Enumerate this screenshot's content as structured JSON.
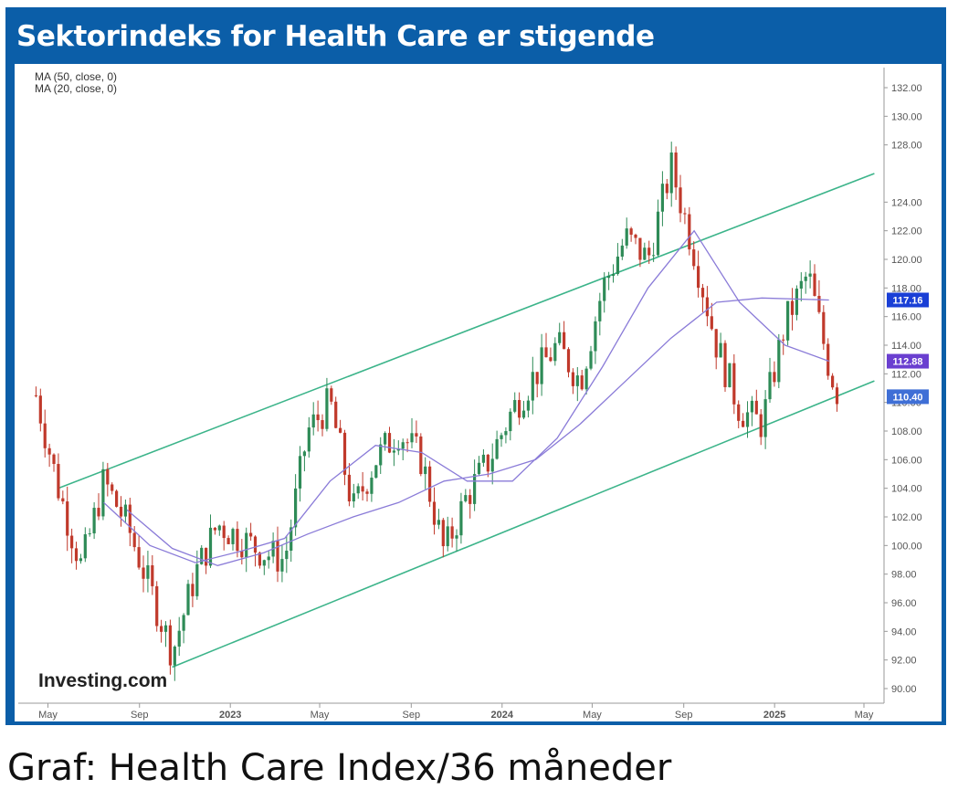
{
  "title": "Sektorindeks for Health Care er stigende",
  "caption": "Graf: Health Care Index/36 måneder",
  "watermark": "Investing.com",
  "colors": {
    "frame": "#0b5ea8",
    "up": "#2e8b57",
    "down": "#c0392b",
    "ma50": "#8a7bd8",
    "channel": "#3cb48a",
    "badge_blue": "#1a3fd6",
    "badge_purple": "#6a3fd0",
    "badge_light": "#3f6fd6"
  },
  "chart_data": {
    "type": "candlestick",
    "legend": [
      "MA (50, close, 0)",
      "MA (20, close, 0)"
    ],
    "ylim": [
      89,
      133
    ],
    "y_ticks": [
      "132.00",
      "130.00",
      "128.00",
      "124.00",
      "122.00",
      "120.00",
      "118.00",
      "116.00",
      "114.00",
      "112.00",
      "110.00",
      "108.00",
      "106.00",
      "104.00",
      "102.00",
      "100.00",
      "98.00",
      "96.00",
      "94.00",
      "92.00",
      "90.00"
    ],
    "x_ticks": [
      "May",
      "Sep",
      "2023",
      "May",
      "Sep",
      "2024",
      "May",
      "Sep",
      "2025",
      "May"
    ],
    "price_badges": [
      {
        "label": "117.16",
        "value": 117.16
      },
      {
        "label": "112.88",
        "value": 112.88
      },
      {
        "label": "110.40",
        "value": 110.4
      }
    ],
    "close_series": [
      {
        "date": "2022-04",
        "value": 110.5
      },
      {
        "date": "2022-05",
        "value": 104.0
      },
      {
        "date": "2022-06",
        "value": 98.5
      },
      {
        "date": "2022-07",
        "value": 104.5
      },
      {
        "date": "2022-08",
        "value": 101.5
      },
      {
        "date": "2022-09",
        "value": 97.0
      },
      {
        "date": "2022-10",
        "value": 92.5
      },
      {
        "date": "2022-11",
        "value": 98.0
      },
      {
        "date": "2022-12",
        "value": 101.5
      },
      {
        "date": "2023-01",
        "value": 100.5
      },
      {
        "date": "2023-02",
        "value": 99.5
      },
      {
        "date": "2023-03",
        "value": 99.0
      },
      {
        "date": "2023-04",
        "value": 108.0
      },
      {
        "date": "2023-05",
        "value": 110.0
      },
      {
        "date": "2023-06",
        "value": 102.5
      },
      {
        "date": "2023-07",
        "value": 106.0
      },
      {
        "date": "2023-08",
        "value": 108.0
      },
      {
        "date": "2023-09",
        "value": 106.0
      },
      {
        "date": "2023-10",
        "value": 99.5
      },
      {
        "date": "2023-11",
        "value": 103.5
      },
      {
        "date": "2023-12",
        "value": 106.0
      },
      {
        "date": "2024-01",
        "value": 109.5
      },
      {
        "date": "2024-02",
        "value": 112.0
      },
      {
        "date": "2024-03",
        "value": 114.0
      },
      {
        "date": "2024-04",
        "value": 111.5
      },
      {
        "date": "2024-05",
        "value": 118.0
      },
      {
        "date": "2024-06",
        "value": 121.5
      },
      {
        "date": "2024-07",
        "value": 120.0
      },
      {
        "date": "2024-08",
        "value": 126.5
      },
      {
        "date": "2024-09",
        "value": 120.5
      },
      {
        "date": "2024-10",
        "value": 114.0
      },
      {
        "date": "2024-11",
        "value": 109.5
      },
      {
        "date": "2024-12",
        "value": 108.5
      },
      {
        "date": "2025-01",
        "value": 115.5
      },
      {
        "date": "2025-02",
        "value": 119.0
      },
      {
        "date": "2025-03",
        "value": 112.5
      },
      {
        "date": "2025-03-28",
        "value": 110.4
      }
    ],
    "ma50": [
      {
        "date": "2022-08",
        "value": 102.5
      },
      {
        "date": "2022-10",
        "value": 99.8
      },
      {
        "date": "2022-12",
        "value": 98.6
      },
      {
        "date": "2023-02",
        "value": 99.5
      },
      {
        "date": "2023-04",
        "value": 100.8
      },
      {
        "date": "2023-06",
        "value": 102.0
      },
      {
        "date": "2023-08",
        "value": 103.0
      },
      {
        "date": "2023-10",
        "value": 104.5
      },
      {
        "date": "2023-12",
        "value": 105.0
      },
      {
        "date": "2024-02",
        "value": 106.0
      },
      {
        "date": "2024-04",
        "value": 108.5
      },
      {
        "date": "2024-06",
        "value": 111.5
      },
      {
        "date": "2024-08",
        "value": 114.5
      },
      {
        "date": "2024-10",
        "value": 117.0
      },
      {
        "date": "2024-12",
        "value": 117.3
      },
      {
        "date": "2025-03",
        "value": 117.16
      }
    ],
    "ma20": [
      {
        "date": "2022-07",
        "value": 103.0
      },
      {
        "date": "2022-09",
        "value": 100.0
      },
      {
        "date": "2022-11",
        "value": 98.8
      },
      {
        "date": "2023-01",
        "value": 99.6
      },
      {
        "date": "2023-03",
        "value": 100.5
      },
      {
        "date": "2023-05",
        "value": 104.5
      },
      {
        "date": "2023-07",
        "value": 107.0
      },
      {
        "date": "2023-09",
        "value": 106.5
      },
      {
        "date": "2023-11",
        "value": 104.5
      },
      {
        "date": "2024-01",
        "value": 104.5
      },
      {
        "date": "2024-03",
        "value": 107.5
      },
      {
        "date": "2024-05",
        "value": 112.5
      },
      {
        "date": "2024-07",
        "value": 118.0
      },
      {
        "date": "2024-09",
        "value": 122.0
      },
      {
        "date": "2024-11",
        "value": 117.0
      },
      {
        "date": "2025-01",
        "value": 114.0
      },
      {
        "date": "2025-03",
        "value": 112.88
      }
    ],
    "channel_upper": [
      {
        "date": "2022-05",
        "value": 104.0
      },
      {
        "date": "2025-05",
        "value": 126.0
      }
    ],
    "channel_lower": [
      {
        "date": "2022-10",
        "value": 91.5
      },
      {
        "date": "2025-05",
        "value": 111.5
      }
    ]
  }
}
